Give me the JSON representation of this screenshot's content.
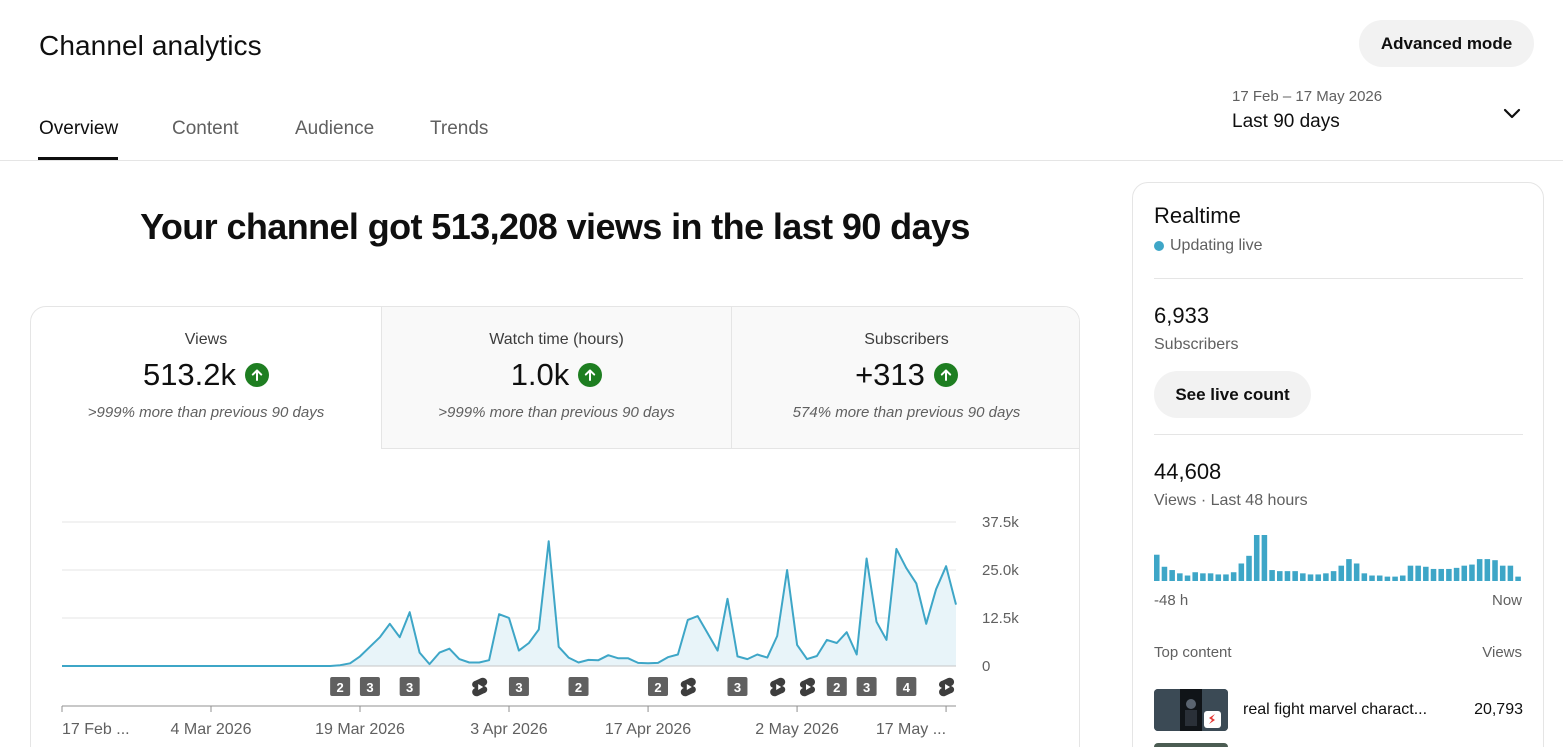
{
  "header": {
    "title": "Channel analytics",
    "advanced_mode": "Advanced mode"
  },
  "tabs": [
    {
      "label": "Overview",
      "active": true
    },
    {
      "label": "Content",
      "active": false
    },
    {
      "label": "Audience",
      "active": false
    },
    {
      "label": "Trends",
      "active": false
    }
  ],
  "date_range": {
    "dates": "17 Feb – 17 May 2026",
    "label": "Last 90 days"
  },
  "headline": "Your channel got 513,208 views in the last 90 days",
  "metrics": [
    {
      "label": "Views",
      "value": "513.2k",
      "note": ">999% more than previous 90 days",
      "trend": "up"
    },
    {
      "label": "Watch time (hours)",
      "value": "1.0k",
      "note": ">999% more than previous 90 days",
      "trend": "up"
    },
    {
      "label": "Subscribers",
      "value": "+313",
      "note": "574% more than previous 90 days",
      "trend": "up"
    }
  ],
  "chart_data": {
    "type": "area",
    "y_ticks": [
      "37.5k",
      "25.0k",
      "12.5k",
      "0"
    ],
    "ylim": [
      0,
      37500
    ],
    "x_tick_labels": [
      "17 Feb ...",
      "4 Mar 2026",
      "19 Mar 2026",
      "3 Apr 2026",
      "17 Apr 2026",
      "2 May 2026",
      "17 May ..."
    ],
    "x_label_days": [
      0,
      15,
      30,
      45,
      59,
      74,
      89
    ],
    "values": [
      0,
      0,
      0,
      0,
      0,
      0,
      0,
      0,
      0,
      0,
      0,
      0,
      0,
      0,
      0,
      0,
      0,
      0,
      0,
      0,
      0,
      0,
      0,
      0,
      0,
      0,
      0,
      0,
      200,
      700,
      2500,
      5000,
      7500,
      11000,
      7500,
      14000,
      3500,
      500,
      3500,
      4500,
      1800,
      900,
      900,
      1500,
      13500,
      12500,
      4000,
      6000,
      9500,
      32500,
      5000,
      2200,
      900,
      1600,
      1500,
      2800,
      2000,
      2000,
      800,
      700,
      800,
      2300,
      3000,
      12000,
      13000,
      8500,
      4000,
      17500,
      2500,
      1800,
      3000,
      2200,
      7800,
      25000,
      5500,
      1800,
      2600,
      6800,
      6000,
      8800,
      3000,
      28000,
      11500,
      6800,
      30500,
      25500,
      21500,
      11000,
      20000,
      26000,
      16000
    ],
    "markers": [
      {
        "day": 28,
        "kind": "count",
        "label": "2"
      },
      {
        "day": 31,
        "kind": "count",
        "label": "3"
      },
      {
        "day": 35,
        "kind": "count",
        "label": "3"
      },
      {
        "day": 42,
        "kind": "short",
        "label": ""
      },
      {
        "day": 46,
        "kind": "count",
        "label": "3"
      },
      {
        "day": 52,
        "kind": "count",
        "label": "2"
      },
      {
        "day": 60,
        "kind": "count",
        "label": "2"
      },
      {
        "day": 63,
        "kind": "short",
        "label": ""
      },
      {
        "day": 68,
        "kind": "count",
        "label": "3"
      },
      {
        "day": 72,
        "kind": "short",
        "label": ""
      },
      {
        "day": 75,
        "kind": "short",
        "label": ""
      },
      {
        "day": 78,
        "kind": "count",
        "label": "2"
      },
      {
        "day": 81,
        "kind": "count",
        "label": "3"
      },
      {
        "day": 85,
        "kind": "count",
        "label": "4"
      },
      {
        "day": 89,
        "kind": "short",
        "label": ""
      }
    ],
    "colors": {
      "line": "#3ea6c7",
      "fill": "#e8f4f9",
      "grid": "#e5e5e5",
      "marker": "#606060"
    }
  },
  "realtime": {
    "title": "Realtime",
    "status": "Updating live",
    "subscribers_count": "6,933",
    "subscribers_label": "Subscribers",
    "live_count_button": "See live count",
    "views_count": "44,608",
    "views_label": "Views · Last 48 hours",
    "axis_start": "-48 h",
    "axis_end": "Now",
    "hourly_views": [
      24,
      13,
      10,
      7,
      5,
      8,
      7,
      7,
      6,
      6,
      8,
      16,
      23,
      42,
      42,
      10,
      9,
      9,
      9,
      7,
      6,
      6,
      7,
      9,
      14,
      20,
      16,
      7,
      5,
      5,
      4,
      4,
      5,
      14,
      14,
      13,
      11,
      11,
      11,
      12,
      14,
      15,
      20,
      20,
      19,
      14,
      14,
      4
    ]
  },
  "top_content": {
    "header": "Top content",
    "views_header": "Views",
    "items": [
      {
        "title": "real fight marvel charact...",
        "views": "20,793"
      }
    ]
  }
}
